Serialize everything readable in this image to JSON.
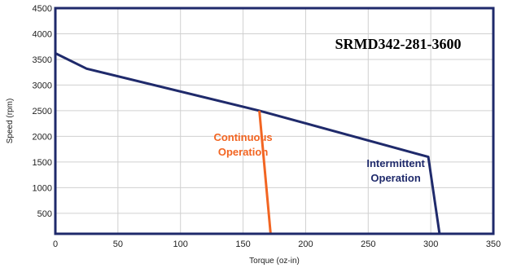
{
  "chart_data": {
    "type": "line",
    "model_label": "SRMD342-281-3600",
    "xlabel": "Torque (oz-in)",
    "ylabel": "Speed (rpm)",
    "xlim": [
      0,
      350
    ],
    "ylim": [
      100,
      4500
    ],
    "x_ticks": [
      0,
      50,
      100,
      150,
      200,
      250,
      300,
      350
    ],
    "y_ticks": [
      500,
      1000,
      1500,
      2000,
      2500,
      3000,
      3500,
      4000,
      4500
    ],
    "grid": true,
    "series": [
      {
        "name": "Intermittent Operation",
        "color": "#1f2a6b",
        "points": [
          [
            0,
            3620
          ],
          [
            25,
            3320
          ],
          [
            163,
            2500
          ],
          [
            298,
            1600
          ],
          [
            307,
            100
          ]
        ]
      },
      {
        "name": "Continuous Operation",
        "color": "#f26522",
        "points": [
          [
            163,
            2500
          ],
          [
            172,
            100
          ]
        ]
      }
    ],
    "region_labels": [
      {
        "lines": [
          "Continuous",
          "Operation"
        ],
        "color": "#f26522",
        "x": 150,
        "y": 1910
      },
      {
        "lines": [
          "Intermittent",
          "Operation"
        ],
        "color": "#1f2a6b",
        "x": 272,
        "y": 1400
      }
    ],
    "frame_color": "#1f2a6b",
    "grid_color": "#d0d0d0"
  }
}
